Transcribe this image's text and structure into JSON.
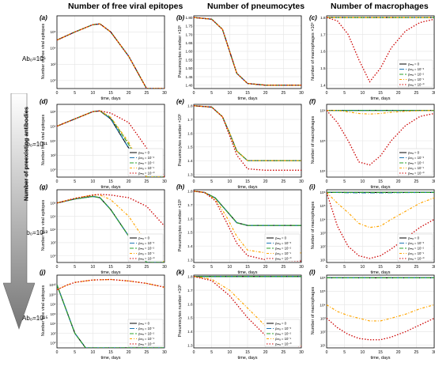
{
  "column_titles": [
    "Number of free viral epitopes",
    "Number of pneumocytes",
    "Number of macrophages"
  ],
  "row_labels": [
    "Ab₀=10⁶",
    "Ab₀=10¹¹",
    "Ab₀=10¹³",
    "Ab₀=10¹⁵"
  ],
  "arrow_label": "Number of preexisting antibodies",
  "legend_entries": [
    "ρₘₐ = 0",
    "ρₘₐ = 10⁻³",
    "ρₘₐ = 10⁻²",
    "ρₘₐ = 10⁻¹",
    "ρₘₐ = 10⁻⁰"
  ],
  "colors": {
    "series": [
      "#000000",
      "#1f77b4",
      "#2ca02c",
      "#ffa500",
      "#cc0000"
    ],
    "arrow": "#777777"
  },
  "chart_data": [
    {
      "panel": "(a)",
      "type": "line",
      "ylabel": "Number of free viral epitopes",
      "xlabel": "time, days",
      "yscale": "log",
      "xlim": [
        0,
        30
      ],
      "ylim": [
        -1,
        8
      ],
      "x": [
        0,
        5,
        10,
        12,
        15,
        20,
        25,
        30
      ],
      "series": [
        {
          "values": [
            5,
            6,
            6.9,
            7,
            6,
            3,
            -1,
            -1
          ]
        },
        {
          "values": [
            5,
            6,
            6.9,
            7,
            6,
            3,
            -1,
            -1
          ]
        },
        {
          "values": [
            5,
            6,
            6.9,
            7,
            6,
            3,
            -1,
            -1
          ]
        },
        {
          "values": [
            5,
            6,
            6.9,
            7,
            6,
            3,
            -1,
            -1
          ]
        },
        {
          "values": [
            5,
            6,
            6.9,
            7,
            6,
            3,
            -1,
            -1
          ]
        }
      ],
      "yticks": [
        "10⁶",
        "10⁴",
        "10²",
        "10⁰"
      ],
      "ytick_vals": [
        6,
        4,
        2,
        0
      ]
    },
    {
      "panel": "(b)",
      "type": "line",
      "ylabel": "Pneumocytes number ×10⁶",
      "xlabel": "time, days",
      "xlim": [
        0,
        30
      ],
      "ylim": [
        1.38,
        1.81
      ],
      "x": [
        0,
        5,
        8,
        10,
        12,
        15,
        20,
        30
      ],
      "series": [
        {
          "values": [
            1.8,
            1.79,
            1.73,
            1.6,
            1.47,
            1.41,
            1.4,
            1.4
          ]
        },
        {
          "values": [
            1.8,
            1.79,
            1.73,
            1.6,
            1.47,
            1.41,
            1.4,
            1.4
          ]
        },
        {
          "values": [
            1.8,
            1.79,
            1.73,
            1.6,
            1.47,
            1.41,
            1.4,
            1.4
          ]
        },
        {
          "values": [
            1.8,
            1.79,
            1.73,
            1.6,
            1.47,
            1.41,
            1.4,
            1.4
          ]
        },
        {
          "values": [
            1.8,
            1.79,
            1.73,
            1.6,
            1.47,
            1.41,
            1.4,
            1.4
          ]
        }
      ],
      "yticks": [
        "1.80",
        "1.75",
        "1.70",
        "1.65",
        "1.60",
        "1.55",
        "1.50",
        "1.45",
        "1.40"
      ],
      "ytick_vals": [
        1.8,
        1.75,
        1.7,
        1.65,
        1.6,
        1.55,
        1.5,
        1.45,
        1.4
      ]
    },
    {
      "panel": "(c)",
      "type": "line",
      "ylabel": "Number of macrophages ×10⁶",
      "xlabel": "time, days",
      "xlim": [
        0,
        30
      ],
      "ylim": [
        1.38,
        1.81
      ],
      "x": [
        0,
        3,
        6,
        9,
        12,
        15,
        18,
        22,
        26,
        30
      ],
      "series": [
        {
          "values": [
            1.8,
            1.8,
            1.8,
            1.8,
            1.8,
            1.8,
            1.8,
            1.8,
            1.8,
            1.8
          ]
        },
        {
          "values": [
            1.8,
            1.8,
            1.8,
            1.8,
            1.8,
            1.8,
            1.8,
            1.8,
            1.8,
            1.8
          ]
        },
        {
          "values": [
            1.8,
            1.8,
            1.8,
            1.8,
            1.8,
            1.8,
            1.8,
            1.8,
            1.8,
            1.8
          ]
        },
        {
          "values": [
            1.8,
            1.8,
            1.8,
            1.8,
            1.8,
            1.8,
            1.8,
            1.8,
            1.8,
            1.8
          ]
        },
        {
          "values": [
            1.8,
            1.78,
            1.7,
            1.55,
            1.42,
            1.5,
            1.62,
            1.72,
            1.77,
            1.79
          ]
        }
      ],
      "yticks": [
        "1.8",
        "1.7",
        "1.6",
        "1.5",
        "1.4"
      ],
      "ytick_vals": [
        1.8,
        1.7,
        1.6,
        1.5,
        1.4
      ]
    },
    {
      "panel": "(d)",
      "type": "line",
      "ylabel": "Number free viral epitopes",
      "xlabel": "time, days",
      "yscale": "log",
      "xlim": [
        0,
        30
      ],
      "ylim": [
        -1,
        9
      ],
      "x": [
        0,
        5,
        10,
        12,
        15,
        20,
        25,
        30
      ],
      "series": [
        {
          "values": [
            6,
            7,
            8,
            8.1,
            7,
            3,
            -1,
            -1
          ]
        },
        {
          "values": [
            6,
            7,
            8,
            8.1,
            7,
            3,
            -1,
            -1
          ]
        },
        {
          "values": [
            6,
            7,
            8,
            8.1,
            7.2,
            3.5,
            -1,
            -1
          ]
        },
        {
          "values": [
            6,
            7,
            8,
            8.1,
            7.2,
            3.8,
            -1,
            -1
          ]
        },
        {
          "values": [
            6,
            7,
            8,
            8.1,
            7.8,
            6.5,
            3,
            -1
          ]
        }
      ],
      "yticks": [
        "10⁸",
        "10⁶",
        "10⁴",
        "10²",
        "10⁰"
      ],
      "ytick_vals": [
        8,
        6,
        4,
        2,
        0
      ]
    },
    {
      "panel": "(e)",
      "type": "line",
      "ylabel": "Pneumocytes number ×10⁶",
      "xlabel": "time, days",
      "xlim": [
        0,
        30
      ],
      "ylim": [
        1.28,
        1.81
      ],
      "x": [
        0,
        5,
        8,
        10,
        12,
        15,
        20,
        30
      ],
      "series": [
        {
          "values": [
            1.8,
            1.79,
            1.72,
            1.6,
            1.47,
            1.4,
            1.4,
            1.4
          ]
        },
        {
          "values": [
            1.8,
            1.79,
            1.72,
            1.6,
            1.47,
            1.4,
            1.4,
            1.4
          ]
        },
        {
          "values": [
            1.8,
            1.79,
            1.72,
            1.6,
            1.47,
            1.4,
            1.4,
            1.4
          ]
        },
        {
          "values": [
            1.8,
            1.79,
            1.72,
            1.6,
            1.47,
            1.4,
            1.4,
            1.4
          ]
        },
        {
          "values": [
            1.8,
            1.79,
            1.72,
            1.58,
            1.44,
            1.34,
            1.33,
            1.33
          ]
        }
      ],
      "yticks": [
        "1.8",
        "1.7",
        "1.6",
        "1.5",
        "1.4",
        "1.3"
      ],
      "ytick_vals": [
        1.8,
        1.7,
        1.6,
        1.5,
        1.4,
        1.3
      ]
    },
    {
      "panel": "(f)",
      "type": "line",
      "ylabel": "Number of macrophages",
      "xlabel": "time, days",
      "yscale": "log",
      "xlim": [
        0,
        30
      ],
      "ylim": [
        3.8,
        6.2
      ],
      "x": [
        0,
        3,
        6,
        9,
        12,
        15,
        18,
        22,
        26,
        30
      ],
      "series": [
        {
          "values": [
            6,
            6,
            6,
            6,
            6,
            6,
            6,
            6,
            6,
            6
          ]
        },
        {
          "values": [
            6,
            6,
            6,
            6,
            6,
            6,
            6,
            6,
            6,
            6
          ]
        },
        {
          "values": [
            6,
            6,
            6,
            6,
            6,
            6,
            6,
            6,
            6,
            6
          ]
        },
        {
          "values": [
            6,
            6,
            5.95,
            5.9,
            5.88,
            5.9,
            5.94,
            5.97,
            5.99,
            6
          ]
        },
        {
          "values": [
            6,
            5.6,
            5,
            4.3,
            4.2,
            4.5,
            5,
            5.5,
            5.8,
            5.9
          ]
        }
      ],
      "yticks": [
        "10⁶",
        "10⁵",
        "10⁴"
      ],
      "ytick_vals": [
        6,
        5,
        4
      ]
    },
    {
      "panel": "(g)",
      "type": "line",
      "ylabel": "Number free viral epitopes",
      "xlabel": "time, days",
      "yscale": "log",
      "xlim": [
        0,
        30
      ],
      "ylim": [
        -1,
        10
      ],
      "x": [
        0,
        5,
        10,
        12,
        15,
        20,
        25,
        30
      ],
      "series": [
        {
          "values": [
            8,
            8.6,
            9,
            8.8,
            7,
            3,
            -1,
            -1
          ]
        },
        {
          "values": [
            8,
            8.6,
            9,
            8.8,
            7,
            3,
            -1,
            -1
          ]
        },
        {
          "values": [
            8,
            8.6,
            9,
            8.8,
            7,
            3,
            -1,
            -1
          ]
        },
        {
          "values": [
            8,
            8.7,
            9.2,
            9.2,
            8.5,
            6,
            2,
            -1
          ]
        },
        {
          "values": [
            8,
            8.7,
            9.2,
            9.3,
            9.2,
            8.8,
            7.5,
            4.5
          ]
        }
      ],
      "yticks": [
        "10⁸",
        "10⁶",
        "10⁴",
        "10²",
        "10⁰"
      ],
      "ytick_vals": [
        8,
        6,
        4,
        2,
        0
      ]
    },
    {
      "panel": "(h)",
      "type": "line",
      "ylabel": "Pneumocytes number ×10⁶",
      "xlabel": "time, days",
      "xlim": [
        0,
        30
      ],
      "ylim": [
        1.28,
        1.81
      ],
      "x": [
        0,
        3,
        6,
        9,
        12,
        15,
        20,
        30
      ],
      "series": [
        {
          "values": [
            1.8,
            1.79,
            1.75,
            1.66,
            1.57,
            1.55,
            1.55,
            1.55
          ]
        },
        {
          "values": [
            1.8,
            1.79,
            1.75,
            1.66,
            1.57,
            1.55,
            1.55,
            1.55
          ]
        },
        {
          "values": [
            1.8,
            1.79,
            1.75,
            1.66,
            1.57,
            1.55,
            1.55,
            1.55
          ]
        },
        {
          "values": [
            1.8,
            1.79,
            1.74,
            1.62,
            1.47,
            1.37,
            1.35,
            1.35
          ]
        },
        {
          "values": [
            1.8,
            1.79,
            1.73,
            1.58,
            1.42,
            1.33,
            1.3,
            1.29
          ]
        }
      ],
      "yticks": [
        "1.8",
        "1.7",
        "1.6",
        "1.5",
        "1.4",
        "1.3"
      ],
      "ytick_vals": [
        1.8,
        1.7,
        1.6,
        1.5,
        1.4,
        1.3
      ]
    },
    {
      "panel": "(i)",
      "type": "line",
      "ylabel": "Number of macrophages",
      "xlabel": "time, days",
      "yscale": "log",
      "xlim": [
        0,
        30
      ],
      "ylim": [
        0.8,
        6.2
      ],
      "x": [
        0,
        3,
        6,
        9,
        12,
        15,
        18,
        22,
        26,
        30
      ],
      "series": [
        {
          "values": [
            6,
            6,
            6,
            6,
            6,
            6,
            6,
            6,
            6,
            6
          ]
        },
        {
          "values": [
            6,
            6,
            5.98,
            5.97,
            5.97,
            5.97,
            5.98,
            5.99,
            6,
            6
          ]
        },
        {
          "values": [
            6,
            6,
            6,
            6,
            6,
            6,
            6,
            6,
            6,
            6
          ]
        },
        {
          "values": [
            6,
            5.2,
            4.5,
            3.7,
            3.4,
            3.5,
            4,
            4.6,
            5.2,
            5.6
          ]
        },
        {
          "values": [
            6,
            3.5,
            2,
            1.3,
            1.1,
            1.3,
            1.8,
            2.6,
            3.4,
            4
          ]
        }
      ],
      "yticks": [
        "10⁶",
        "10⁵",
        "10⁴",
        "10³",
        "10²",
        "10¹"
      ],
      "ytick_vals": [
        6,
        5,
        4,
        3,
        2,
        1
      ]
    },
    {
      "panel": "(j)",
      "type": "line",
      "ylabel": "Number free viral epitopes",
      "xlabel": "time, days",
      "yscale": "log",
      "xlim": [
        0,
        30
      ],
      "ylim": [
        -1,
        14
      ],
      "x": [
        0,
        3,
        5,
        8,
        10,
        15,
        20,
        25,
        30
      ],
      "series": [
        {
          "values": [
            12,
            6,
            2,
            -1,
            -1,
            -1,
            -1,
            -1,
            -1
          ]
        },
        {
          "values": [
            12,
            6,
            2,
            -1,
            -1,
            -1,
            -1,
            -1,
            -1
          ]
        },
        {
          "values": [
            12,
            6,
            2,
            -1,
            -1,
            -1,
            -1,
            -1,
            -1
          ]
        },
        {
          "values": [
            11,
            12,
            12.5,
            12.8,
            13,
            13.1,
            12.8,
            12.3,
            11.5
          ]
        },
        {
          "values": [
            11,
            12,
            12.5,
            12.8,
            13,
            13.1,
            12.8,
            12.3,
            11.5
          ]
        }
      ],
      "yticks": [
        "10¹²",
        "10¹⁰",
        "10⁸",
        "10⁶",
        "10⁴",
        "10²",
        "10⁰"
      ],
      "ytick_vals": [
        12,
        10,
        8,
        6,
        4,
        2,
        0
      ]
    },
    {
      "panel": "(k)",
      "type": "line",
      "ylabel": "Pneumocytes number ×10⁶",
      "xlabel": "time, days",
      "xlim": [
        0,
        30
      ],
      "ylim": [
        1.28,
        1.81
      ],
      "x": [
        0,
        5,
        10,
        15,
        20,
        25,
        30
      ],
      "series": [
        {
          "values": [
            1.8,
            1.8,
            1.8,
            1.8,
            1.8,
            1.8,
            1.8
          ]
        },
        {
          "values": [
            1.8,
            1.8,
            1.8,
            1.8,
            1.8,
            1.8,
            1.8
          ]
        },
        {
          "values": [
            1.8,
            1.8,
            1.8,
            1.8,
            1.8,
            1.8,
            1.8
          ]
        },
        {
          "values": [
            1.8,
            1.78,
            1.7,
            1.57,
            1.44,
            1.35,
            1.3
          ]
        },
        {
          "values": [
            1.8,
            1.77,
            1.66,
            1.5,
            1.37,
            1.31,
            1.29
          ]
        }
      ],
      "yticks": [
        "1.8",
        "1.7",
        "1.6",
        "1.5",
        "1.4",
        "1.3"
      ],
      "ytick_vals": [
        1.8,
        1.7,
        1.6,
        1.5,
        1.4,
        1.3
      ]
    },
    {
      "panel": "(l)",
      "type": "line",
      "ylabel": "Number of macrophages",
      "xlabel": "time, days",
      "yscale": "log",
      "xlim": [
        0,
        30
      ],
      "ylim": [
        0.8,
        6.2
      ],
      "x": [
        0,
        3,
        6,
        9,
        12,
        15,
        18,
        22,
        26,
        30
      ],
      "series": [
        {
          "values": [
            6,
            6,
            6,
            6,
            6,
            6,
            6,
            6,
            6,
            6
          ]
        },
        {
          "values": [
            6,
            6,
            6,
            6,
            6,
            6,
            6,
            6,
            6,
            6
          ]
        },
        {
          "values": [
            6,
            6,
            6,
            6,
            6,
            6,
            6,
            6,
            6,
            6
          ]
        },
        {
          "values": [
            4,
            3.5,
            3.2,
            3,
            2.8,
            2.8,
            3,
            3.3,
            3.7,
            4
          ]
        },
        {
          "values": [
            3,
            2.3,
            1.8,
            1.5,
            1.4,
            1.4,
            1.6,
            2,
            2.5,
            3
          ]
        }
      ],
      "yticks": [
        "10⁶",
        "10⁵",
        "10⁴",
        "10³",
        "10²",
        "10¹"
      ],
      "ytick_vals": [
        6,
        5,
        4,
        3,
        2,
        1
      ]
    }
  ],
  "xticks": [
    "0",
    "5",
    "10",
    "15",
    "20",
    "25",
    "30"
  ],
  "xtick_vals": [
    0,
    5,
    10,
    15,
    20,
    25,
    30
  ]
}
